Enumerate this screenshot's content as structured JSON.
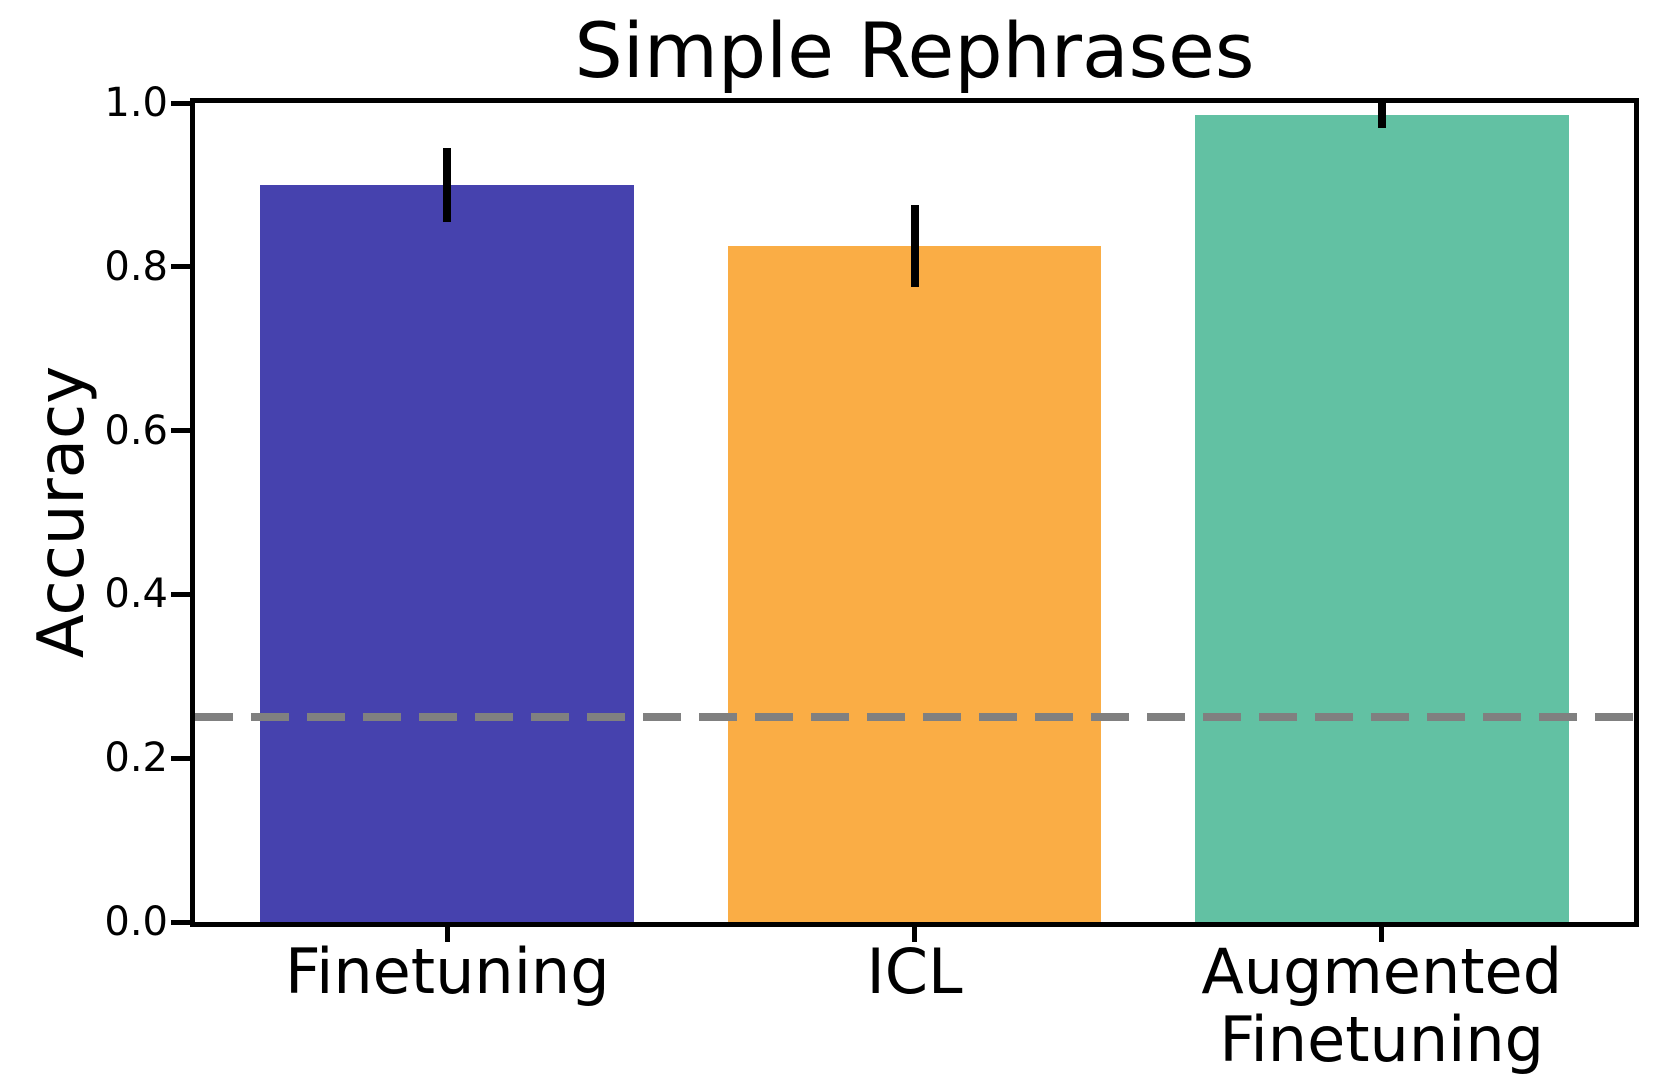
{
  "figure": {
    "background": "#ffffff"
  },
  "chart_data": {
    "type": "bar",
    "title": "Simple Rephrases",
    "ylabel": "Accuracy",
    "xlabel": "",
    "categories": [
      "Finetuning",
      "ICL",
      "Augmented\nFinetuning"
    ],
    "values": [
      0.9,
      0.825,
      0.985
    ],
    "error_bars": [
      0.045,
      0.05,
      0.015
    ],
    "bar_colors": [
      "#4642AE",
      "#FAAD45",
      "#62C1A3"
    ],
    "error_bar_color": "#000000",
    "chance_line": {
      "value": 0.25,
      "color": "#808080",
      "style": "dashed"
    },
    "ylim": [
      0.0,
      1.0
    ],
    "yticks": [
      "0.0",
      "0.2",
      "0.4",
      "0.6",
      "0.8",
      "1.0"
    ],
    "bar_width_fraction": 0.8,
    "xlim": [
      -0.54,
      2.54
    ],
    "grid": false,
    "legend": null,
    "axis_color": "#000000"
  }
}
